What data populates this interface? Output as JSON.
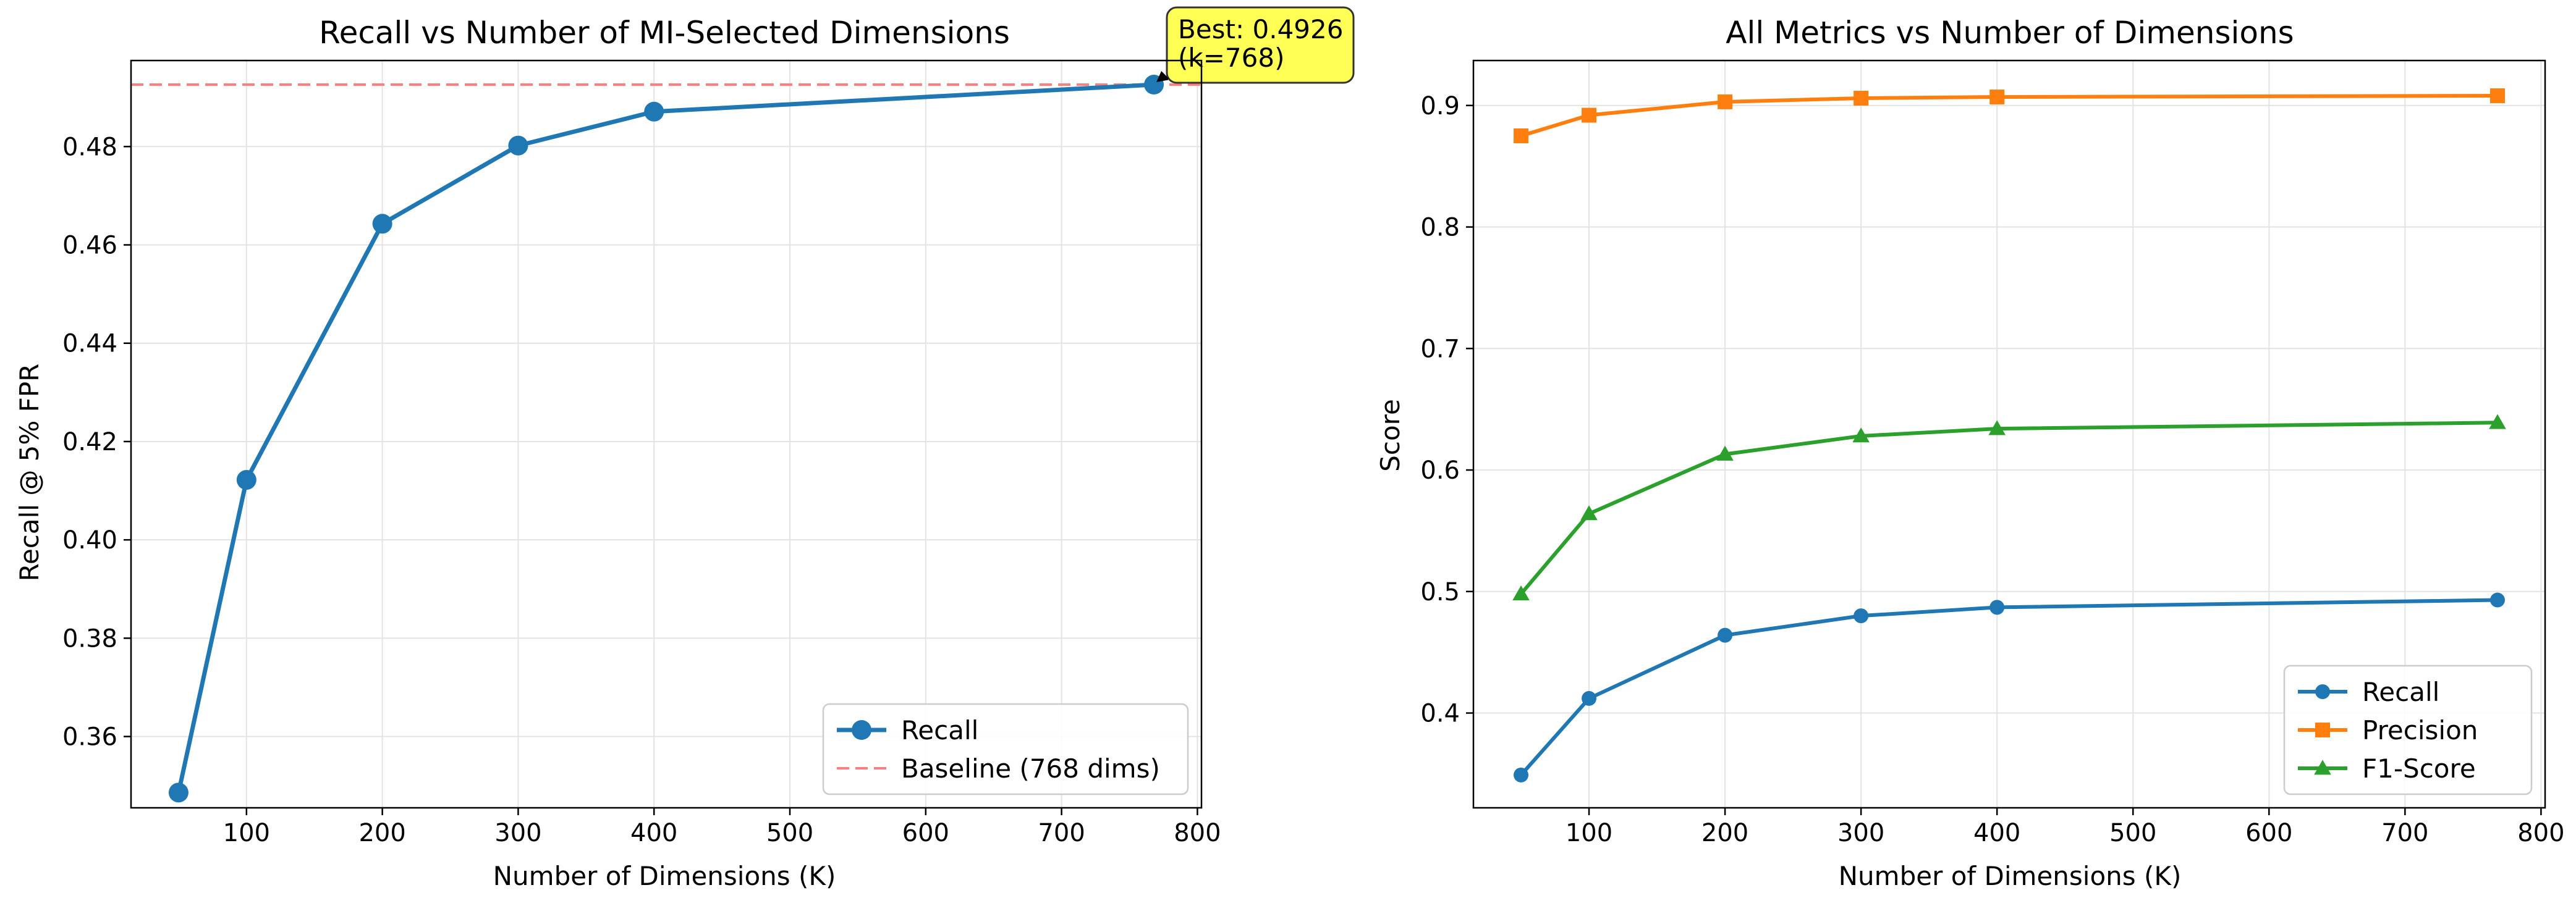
{
  "chart_data": [
    {
      "type": "line",
      "title": "Recall vs Number of MI-Selected Dimensions",
      "xlabel": "Number of Dimensions (K)",
      "ylabel": "Recall @ 5% FPR",
      "x": [
        50,
        100,
        200,
        300,
        400,
        768
      ],
      "xlim": [
        15,
        803
      ],
      "ylim": [
        0.3455,
        0.4975
      ],
      "xticks": [
        "100",
        "200",
        "300",
        "400",
        "500",
        "600",
        "700",
        "800"
      ],
      "yticks": [
        "0.36",
        "0.38",
        "0.40",
        "0.42",
        "0.44",
        "0.46",
        "0.48"
      ],
      "grid": true,
      "legend_position": "lower-right",
      "series": [
        {
          "name": "Recall",
          "values": [
            0.3486,
            0.4122,
            0.4643,
            0.4802,
            0.4871,
            0.4926
          ],
          "color": "#1f77b4",
          "marker": "circle"
        }
      ],
      "reference_lines": [
        {
          "name": "Baseline (768 dims)",
          "y": 0.4926,
          "color": "#ff7f7f",
          "style": "dashed"
        }
      ],
      "annotation": {
        "lines": [
          "Best: 0.4926",
          "(k=768)"
        ],
        "x": 768,
        "y": 0.4926,
        "box_color": "#ffff55"
      }
    },
    {
      "type": "line",
      "title": "All Metrics vs Number of Dimensions",
      "xlabel": "Number of Dimensions (K)",
      "ylabel": "Score",
      "x": [
        50,
        100,
        200,
        300,
        400,
        768
      ],
      "xlim": [
        15,
        803
      ],
      "ylim": [
        0.322,
        0.937
      ],
      "xticks": [
        "100",
        "200",
        "300",
        "400",
        "500",
        "600",
        "700",
        "800"
      ],
      "yticks": [
        "0.4",
        "0.5",
        "0.6",
        "0.7",
        "0.8",
        "0.9"
      ],
      "grid": true,
      "legend_position": "lower-right",
      "series": [
        {
          "name": "Recall",
          "values": [
            0.349,
            0.412,
            0.464,
            0.48,
            0.487,
            0.493
          ],
          "color": "#1f77b4",
          "marker": "circle"
        },
        {
          "name": "Precision",
          "values": [
            0.875,
            0.892,
            0.903,
            0.906,
            0.907,
            0.908
          ],
          "color": "#ff7f0e",
          "marker": "square"
        },
        {
          "name": "F1-Score",
          "values": [
            0.498,
            0.564,
            0.613,
            0.628,
            0.634,
            0.639
          ],
          "color": "#2ca02c",
          "marker": "triangle"
        }
      ]
    }
  ]
}
